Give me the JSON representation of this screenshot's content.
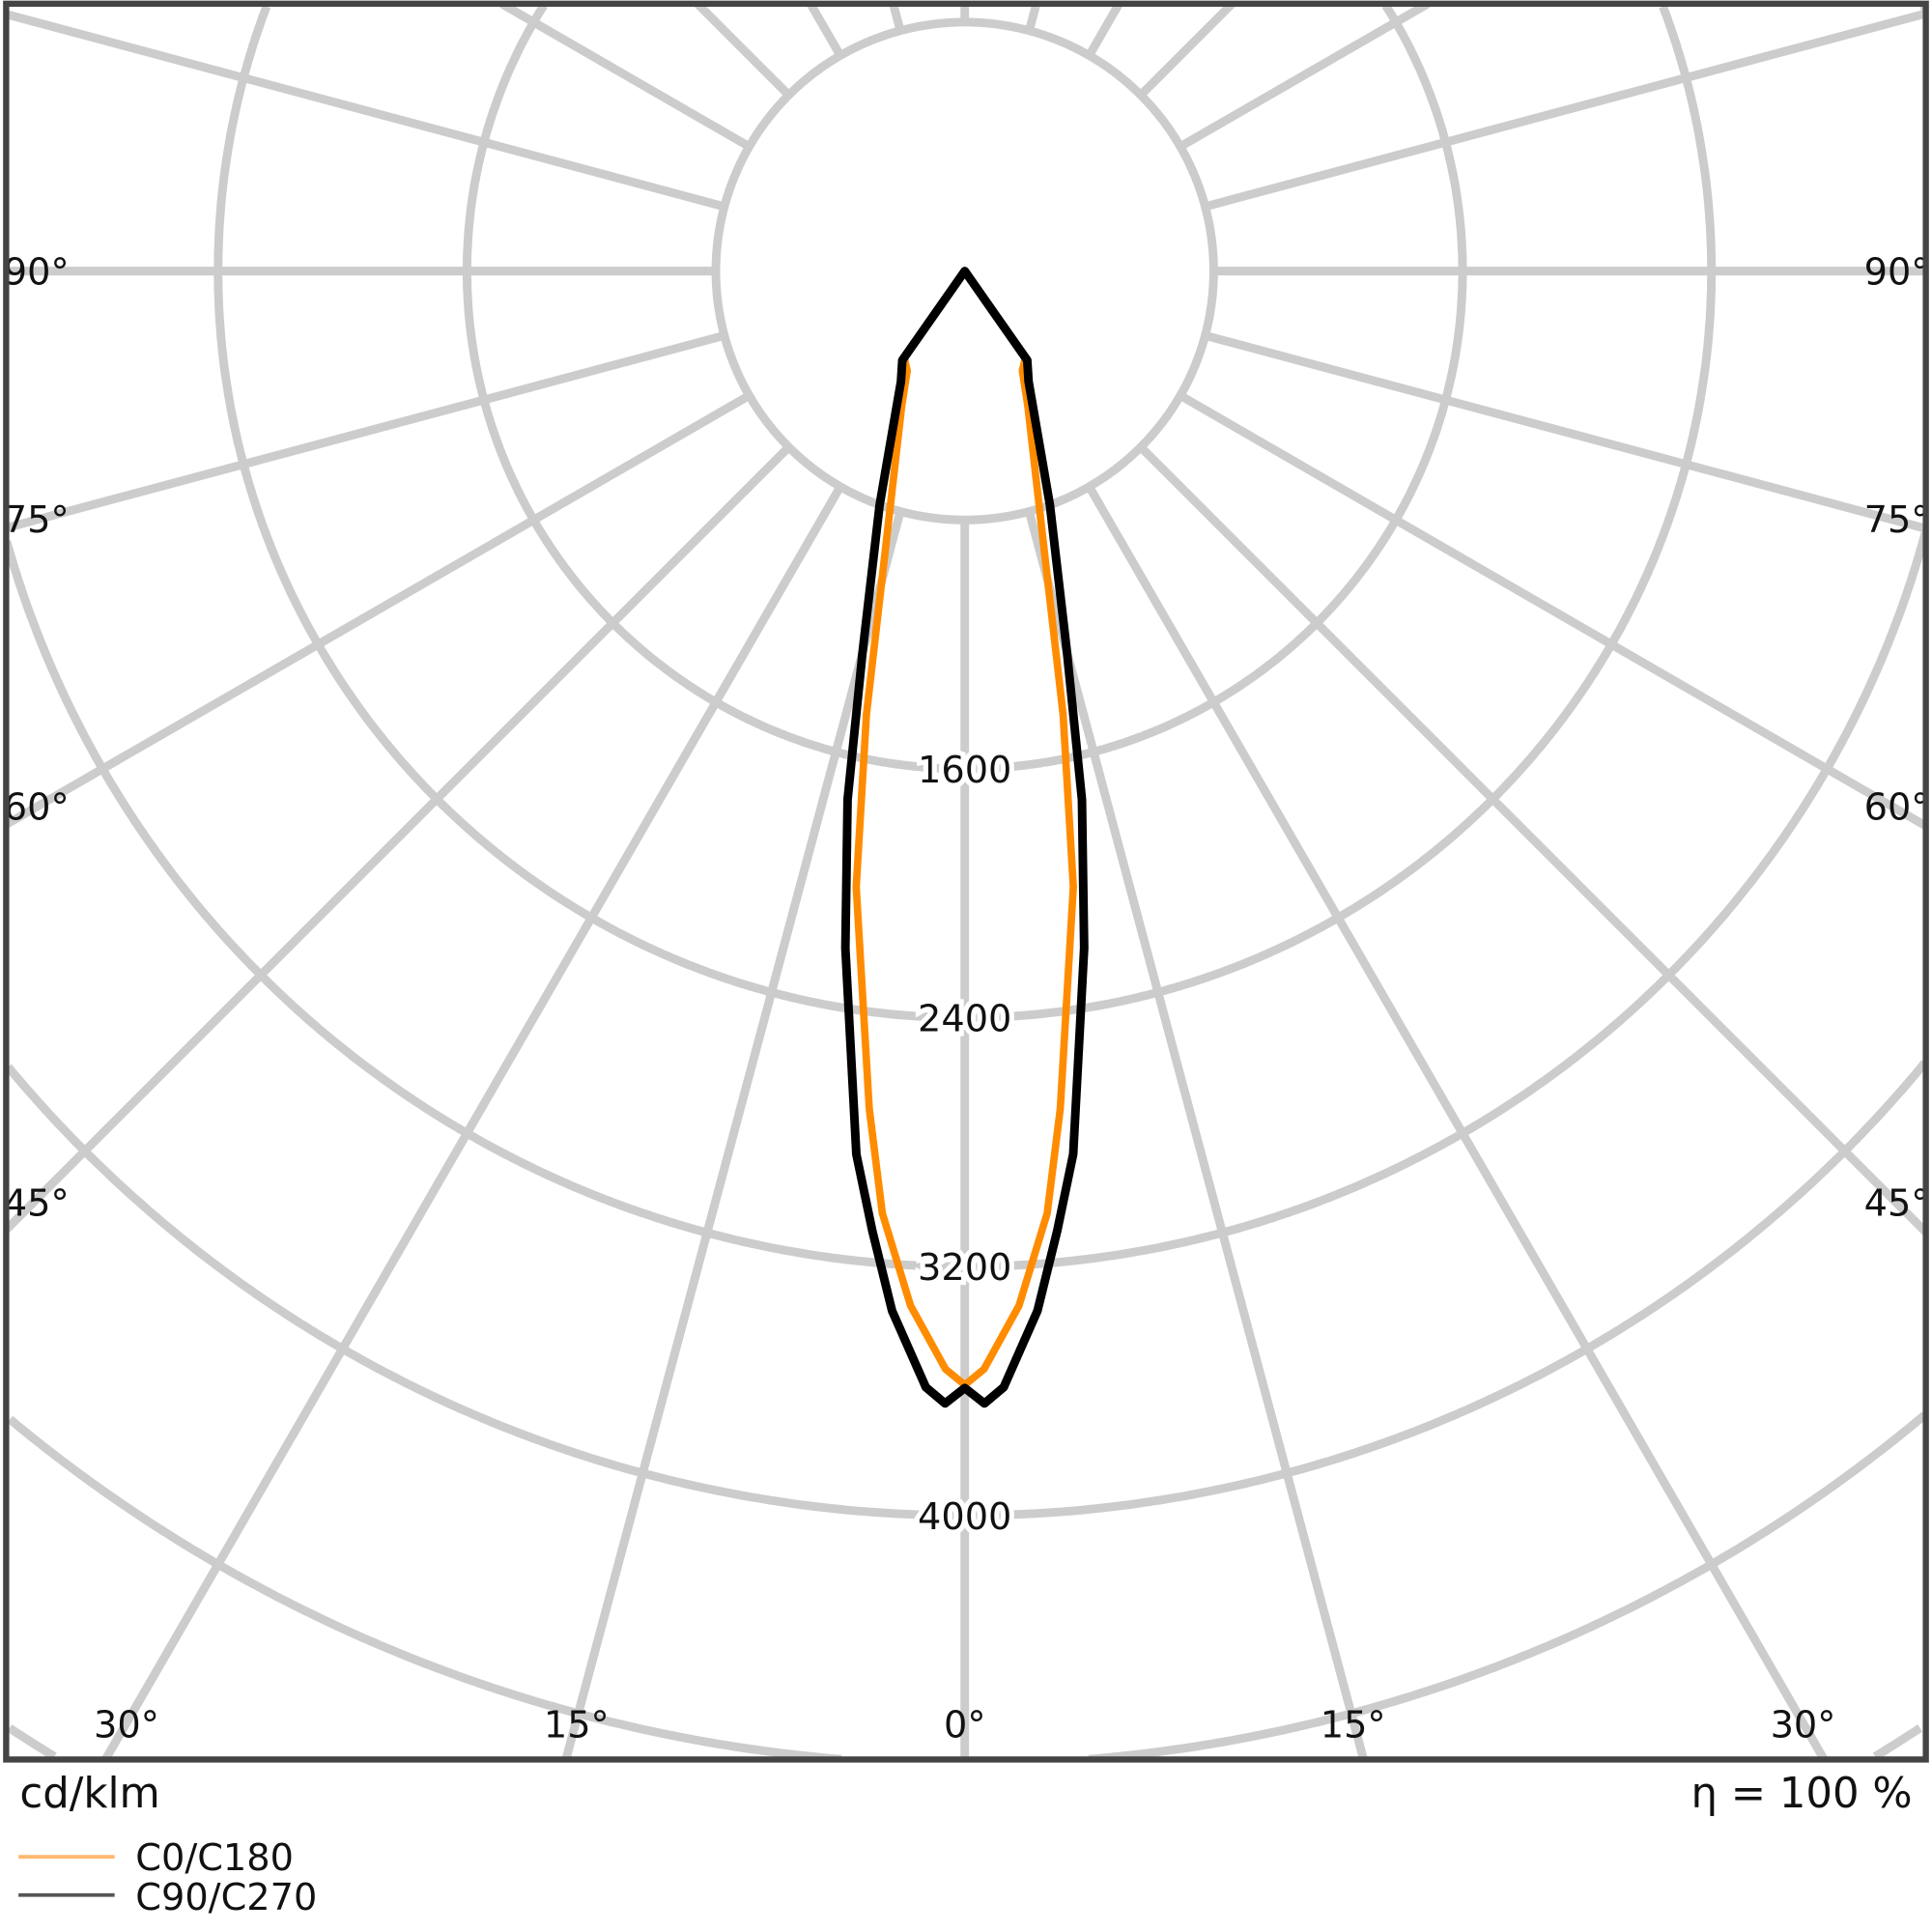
{
  "chart_data": {
    "type": "polar-line",
    "unit_label": "cd/klm",
    "efficiency_label": "η = 100 %",
    "radial_ticks": [
      800,
      1600,
      2400,
      3200,
      4000,
      4800,
      5600,
      6400,
      7200,
      8000
    ],
    "radial_tick_labels": [
      "1600",
      "2400",
      "3200",
      "4000"
    ],
    "radial_tick_label_values": [
      1600,
      2400,
      3200,
      4000
    ],
    "angle_grid_step_deg": 15,
    "side_angle_labels": [
      "90°",
      "75°",
      "60°",
      "45°"
    ],
    "side_angle_values": [
      90,
      75,
      60,
      45
    ],
    "bottom_angle_labels": [
      "30°",
      "15°",
      "0°",
      "15°",
      "30°"
    ],
    "bottom_angle_values": [
      -30,
      -15,
      0,
      15,
      30
    ],
    "grid": true,
    "legend_placement": "bottom-left",
    "series": [
      {
        "name": "C0/C180",
        "color": "#ff8c00",
        "angles": [
          0,
          1,
          3,
          5,
          6.5,
          10,
          12.5,
          15,
          25,
          30,
          35,
          40,
          90
        ],
        "values": [
          3580,
          3530,
          3330,
          3040,
          2710,
          2010,
          1460,
          1030,
          480,
          370,
          340,
          0,
          0
        ]
      },
      {
        "name": "C90/C270",
        "color": "#000000",
        "angles": [
          0,
          1,
          2,
          4,
          5.5,
          7,
          10,
          12.5,
          15,
          20,
          30,
          35,
          40,
          90
        ],
        "values": [
          3590,
          3640,
          3590,
          3350,
          3100,
          2860,
          2210,
          1740,
          1270,
          800,
          410,
          350,
          0,
          0
        ]
      }
    ],
    "grid_color": "#cccccc",
    "frame_color": "#444444"
  }
}
